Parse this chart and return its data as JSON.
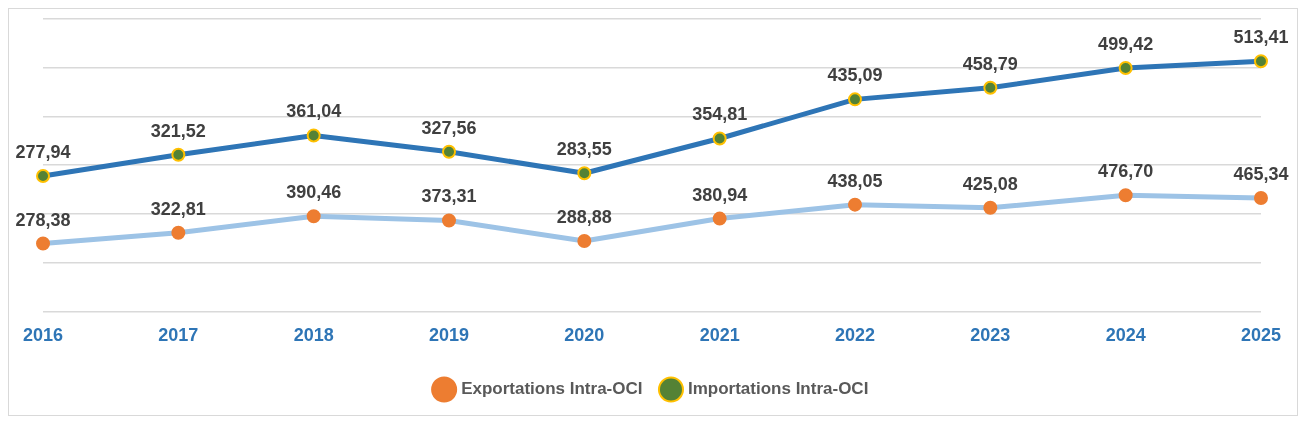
{
  "chart_data": {
    "type": "line",
    "categories": [
      "2016",
      "2017",
      "2018",
      "2019",
      "2020",
      "2021",
      "2022",
      "2023",
      "2024",
      "2025"
    ],
    "series": [
      {
        "name": "Exportations Intra-OCI",
        "color": "#9dc3e6",
        "values": [
          278.38,
          322.81,
          390.46,
          373.31,
          288.88,
          380.94,
          438.05,
          425.08,
          476.7,
          465.34
        ],
        "value_labels": [
          "278,38",
          "322,81",
          "390,46",
          "373,31",
          "288,88",
          "380,94",
          "438,05",
          "425,08",
          "476,70",
          "465,34"
        ]
      },
      {
        "name": "Importations Intra-OCI",
        "color": "#2e75b6",
        "axis": "y2",
        "values": [
          277.94,
          321.52,
          361.04,
          327.56,
          283.55,
          354.81,
          435.09,
          458.79,
          499.42,
          513.41
        ],
        "value_labels": [
          "277,94",
          "321,52",
          "361,04",
          "327,56",
          "283,55",
          "354,81",
          "435,09",
          "458,79",
          "499,42",
          "513,41"
        ]
      }
    ],
    "ylim": [
      0,
      1200
    ],
    "yticks": [
      0,
      200,
      400,
      600,
      800,
      1000,
      1200
    ],
    "y2lim": [
      0,
      600
    ],
    "tick_labels": "x",
    "grid": "y",
    "legend": "bottom",
    "marker": "circle",
    "line_style": "solid"
  }
}
